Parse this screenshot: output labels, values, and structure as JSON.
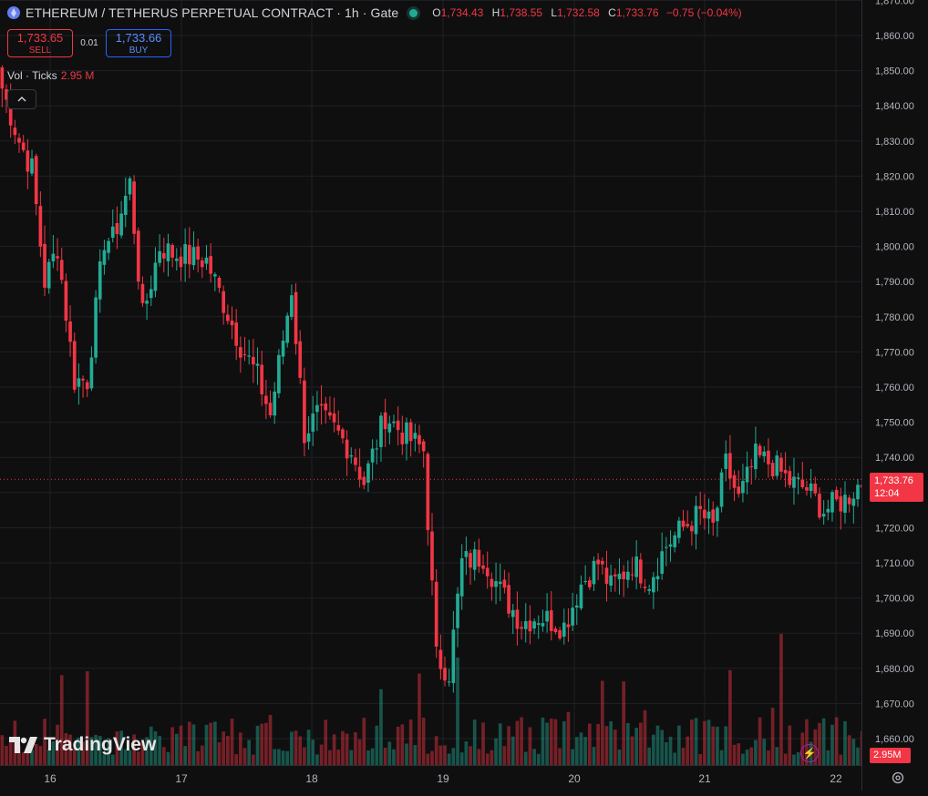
{
  "header": {
    "symbol_title": "ETHEREUM / TETHERUS PERPETUAL CONTRACT · 1h · Gate",
    "ohlc": {
      "o_label": "O",
      "o": "1,734.43",
      "h_label": "H",
      "h": "1,738.55",
      "l_label": "L",
      "l": "1,732.58",
      "c_label": "C",
      "c": "1,733.76",
      "change": "−0.75 (−0.04%)"
    },
    "sell_price": "1,733.65",
    "sell_label": "SELL",
    "spread": "0.01",
    "buy_price": "1,733.66",
    "buy_label": "BUY",
    "volume_label": "Vol · Ticks",
    "volume_value": "2.95 M"
  },
  "branding": {
    "logo_text": "TradingView"
  },
  "price_axis": {
    "labels": [
      "1,870.00",
      "1,860.00",
      "1,850.00",
      "1,840.00",
      "1,830.00",
      "1,820.00",
      "1,810.00",
      "1,800.00",
      "1,790.00",
      "1,780.00",
      "1,770.00",
      "1,760.00",
      "1,750.00",
      "1,740.00",
      "1,730.00",
      "1,720.00",
      "1,710.00",
      "1,700.00",
      "1,690.00",
      "1,680.00",
      "1,670.00",
      "1,660.00"
    ],
    "last_price": "1,733.76",
    "countdown": "12:04",
    "volume_tag": "2.95M"
  },
  "time_axis": {
    "labels": [
      "16",
      "17",
      "18",
      "19",
      "20",
      "21",
      "22"
    ]
  },
  "colors": {
    "up": "#22ab94",
    "down": "#f23645",
    "background": "#0f0f0f",
    "grid": "#1e2127"
  },
  "chart_data": {
    "type": "candlestick",
    "interval": "1h",
    "ylim": [
      1660,
      1870
    ],
    "last_price": 1733.76,
    "x_ticks": [
      "16",
      "17",
      "18",
      "19",
      "20",
      "21",
      "22"
    ],
    "anchors": [
      [
        0,
        1845
      ],
      [
        4,
        1830
      ],
      [
        7,
        1822
      ],
      [
        10,
        1790
      ],
      [
        13,
        1800
      ],
      [
        17,
        1762
      ],
      [
        20,
        1762
      ],
      [
        24,
        1802
      ],
      [
        26,
        1802
      ],
      [
        30,
        1818
      ],
      [
        33,
        1780
      ],
      [
        37,
        1800
      ],
      [
        40,
        1798
      ],
      [
        48,
        1796
      ],
      [
        51,
        1787
      ],
      [
        56,
        1772
      ],
      [
        60,
        1763
      ],
      [
        63,
        1752
      ],
      [
        68,
        1788
      ],
      [
        71,
        1747
      ],
      [
        74,
        1752
      ],
      [
        78,
        1748
      ],
      [
        82,
        1742
      ],
      [
        85,
        1733
      ],
      [
        90,
        1752
      ],
      [
        94,
        1747
      ],
      [
        99,
        1742
      ],
      [
        102,
        1683
      ],
      [
        105,
        1679
      ],
      [
        108,
        1710
      ],
      [
        113,
        1712
      ],
      [
        117,
        1702
      ],
      [
        122,
        1693
      ],
      [
        126,
        1695
      ],
      [
        132,
        1692
      ],
      [
        136,
        1704
      ],
      [
        140,
        1710
      ],
      [
        143,
        1703
      ],
      [
        148,
        1710
      ],
      [
        152,
        1705
      ],
      [
        156,
        1715
      ],
      [
        160,
        1720
      ],
      [
        164,
        1724
      ],
      [
        167,
        1720
      ],
      [
        170,
        1738
      ],
      [
        173,
        1728
      ],
      [
        177,
        1740
      ],
      [
        181,
        1738
      ],
      [
        185,
        1733
      ],
      [
        189,
        1731
      ],
      [
        193,
        1725
      ],
      [
        198,
        1728
      ],
      [
        201,
        1732
      ],
      [
        203,
        1733.76
      ]
    ],
    "volume_max_millions": 9.5
  }
}
